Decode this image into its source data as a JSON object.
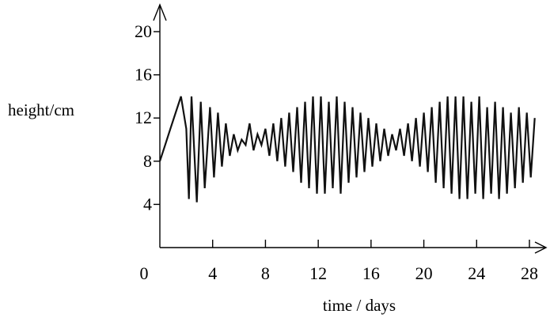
{
  "chart_data": {
    "type": "line",
    "title": "",
    "xlabel": "time / days",
    "ylabel": "height/cm",
    "xlim": [
      0,
      28.5
    ],
    "ylim": [
      0,
      21
    ],
    "x_ticks": [
      0,
      4,
      8,
      12,
      16,
      20,
      24,
      28
    ],
    "y_ticks": [
      4,
      8,
      12,
      16,
      20
    ],
    "grid": false,
    "legend": "none",
    "line_color": "#111111",
    "series": [
      {
        "x": [
          0,
          0.4,
          0.8,
          1.2,
          1.6,
          2,
          2.2,
          2.4,
          2.8,
          3.1,
          3.4,
          3.8,
          4.1,
          4.4,
          4.7,
          5.0,
          5.3,
          5.6,
          5.9,
          6.2,
          6.5,
          6.8,
          7.1,
          7.4,
          7.7,
          8.0,
          8.3,
          8.6,
          8.9,
          9.2,
          9.5,
          9.8,
          10.1,
          10.4,
          10.7,
          11.0,
          11.3,
          11.6,
          11.9,
          12.2,
          12.5,
          12.8,
          13.1,
          13.4,
          13.7,
          14.0,
          14.3,
          14.6,
          14.9,
          15.2,
          15.5,
          15.8,
          16.1,
          16.4,
          16.7,
          17.0,
          17.3,
          17.6,
          17.9,
          18.2,
          18.5,
          18.8,
          19.1,
          19.4,
          19.7,
          20.0,
          20.3,
          20.6,
          20.9,
          21.2,
          21.5,
          21.8,
          22.1,
          22.4,
          22.7,
          23.0,
          23.3,
          23.6,
          23.9,
          24.2,
          24.5,
          24.8,
          25.1,
          25.4,
          25.7,
          26.0,
          26.3,
          26.6,
          26.9,
          27.2,
          27.5,
          27.8,
          28.1,
          28.4
        ],
        "y": [
          8,
          9.5,
          11,
          12.5,
          14,
          11,
          4.5,
          14,
          4.2,
          13.5,
          5.5,
          13,
          6.5,
          12.5,
          7.5,
          11.5,
          8.5,
          10.5,
          9,
          10,
          9.5,
          11.5,
          9,
          10.5,
          9.5,
          11,
          8.5,
          11.5,
          8,
          12,
          7.5,
          12.5,
          7,
          13,
          6,
          13.5,
          5.5,
          14,
          5,
          14,
          5,
          13.5,
          5.5,
          14,
          5,
          13.5,
          6,
          13,
          6.5,
          12.5,
          7,
          12,
          7.5,
          11.5,
          8,
          11,
          8.5,
          10.5,
          9,
          11,
          8.5,
          11.5,
          8,
          12,
          7.5,
          12.5,
          7,
          13,
          6,
          13.5,
          5.5,
          14,
          5,
          14,
          4.5,
          14,
          4.5,
          13.5,
          5,
          14,
          4.5,
          13,
          5,
          13.5,
          4.5,
          13,
          5,
          12.5,
          5.5,
          13,
          6,
          12.5,
          6.5,
          12
        ]
      }
    ]
  }
}
